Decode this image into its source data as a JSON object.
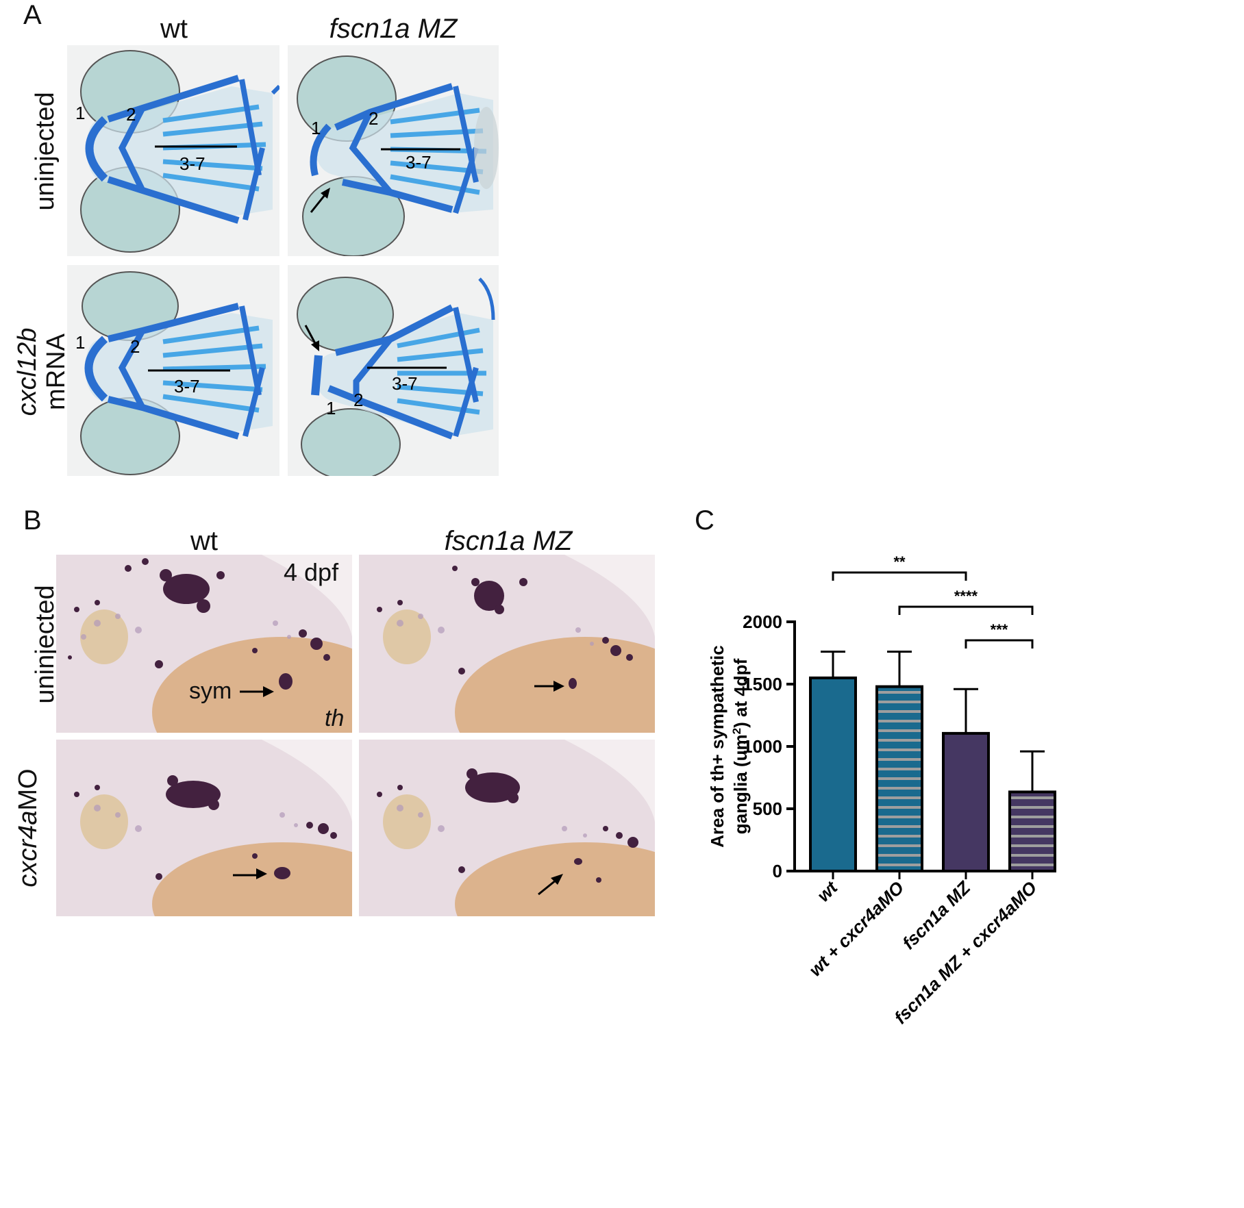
{
  "panelA": {
    "letter": "A",
    "col_headers": [
      "wt",
      "fscn1a MZ"
    ],
    "row_headers": [
      "uninjected",
      "cxcl12b",
      "mRNA"
    ],
    "labels": {
      "one": "1",
      "two": "2",
      "range": "3-7"
    }
  },
  "panelB": {
    "letter": "B",
    "col_headers": [
      "wt",
      "fscn1a MZ"
    ],
    "row_headers": [
      "uninjected",
      "cxcr4a",
      "MO"
    ],
    "stage": "4 dpf",
    "sym": "sym",
    "probe": "th"
  },
  "panelC": {
    "letter": "C"
  },
  "colors": {
    "wt": "#1a6a8e",
    "mz": "#453762",
    "stripe": "#9e9e9e",
    "alcian": "#2a6fd0",
    "yolk": "#d9ab7e"
  },
  "chart_data": {
    "type": "bar",
    "categories": [
      "wt",
      "wt + cxcr4aMO",
      "fscn1a MZ",
      "fscn1a MZ + cxcr4aMO"
    ],
    "values": [
      1550,
      1480,
      1105,
      635
    ],
    "error": [
      210,
      280,
      355,
      325
    ],
    "fills": [
      "solid",
      "striped",
      "solid",
      "striped"
    ],
    "colors": [
      "#1a6a8e",
      "#1a6a8e",
      "#453762",
      "#453762"
    ],
    "ylabel_line1": "Area of th+ sympathetic",
    "ylabel_line2": "ganglia (um",
    "ylabel_sup": "2",
    "ylabel_line2_end": ") at 4dpf",
    "ylim": [
      0,
      2000
    ],
    "yticks": [
      0,
      500,
      1000,
      1500,
      2000
    ],
    "significance": [
      {
        "from": 0,
        "to": 2,
        "label": "**"
      },
      {
        "from": 1,
        "to": 3,
        "label": "****"
      },
      {
        "from": 2,
        "to": 3,
        "label": "***"
      }
    ]
  }
}
